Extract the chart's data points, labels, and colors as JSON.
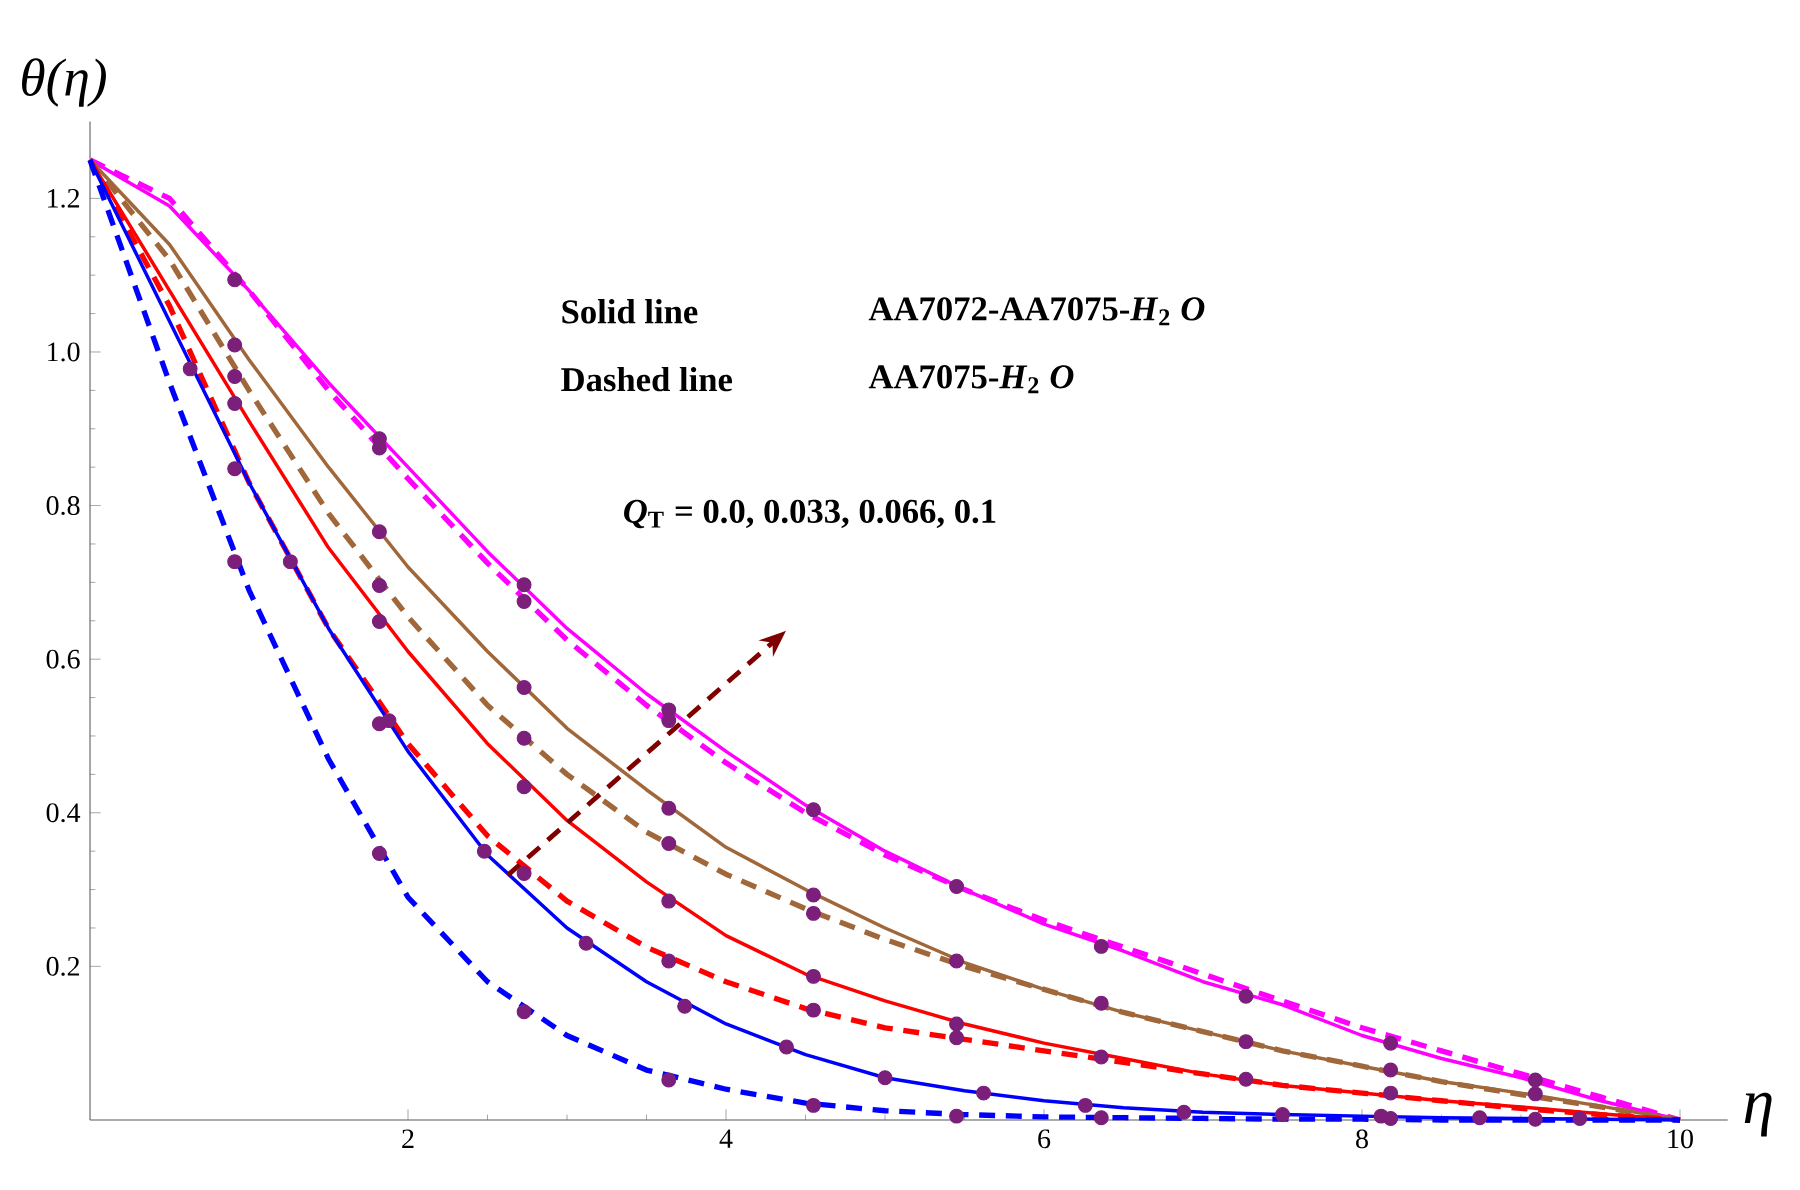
{
  "chart_data": {
    "type": "line",
    "xlabel": "η",
    "ylabel": "θ(η)",
    "annotations": [
      "Solid line",
      "AA7072-AA7075-*H*$_{2}$ *O*",
      "Dashed line",
      "AA7075-*H*$_{2}$ *O*",
      "*Q*$_{T}$ = 0.0, 0.033, 0.066, 0.1"
    ],
    "x": [
      0,
      0.5,
      1,
      1.5,
      2,
      2.5,
      3,
      3.5,
      4,
      4.5,
      5,
      5.5,
      6,
      6.5,
      7,
      7.5,
      8,
      8.5,
      9,
      9.5,
      10
    ],
    "xlim": [
      0,
      10.3
    ],
    "ylim": [
      0,
      1.3
    ],
    "xticks": [
      2,
      4,
      6,
      8,
      10
    ],
    "yticks": [
      0.2,
      0.4,
      0.6,
      0.8,
      {
        "value": 1.0,
        "label": "1.0"
      },
      1.2
    ],
    "grid": false,
    "marker": "none",
    "series": [
      {
        "color": "#ff00ff",
        "line_style": "solid",
        "values": [
          1.25,
          1.19,
          1.08,
          0.96,
          0.85,
          0.74,
          0.64,
          0.555,
          0.48,
          0.41,
          0.35,
          0.3,
          0.255,
          0.22,
          0.18,
          0.15,
          0.11,
          0.08,
          0.055,
          0.025,
          0
        ]
      },
      {
        "color": "#ff00ff",
        "line_style": "dashed",
        "values": [
          1.25,
          1.2,
          1.08,
          0.95,
          0.835,
          0.725,
          0.625,
          0.54,
          0.465,
          0.4,
          0.345,
          0.3,
          0.26,
          0.225,
          0.19,
          0.155,
          0.12,
          0.09,
          0.06,
          0.03,
          0
        ]
      },
      {
        "color": "#a0673a",
        "line_style": "solid",
        "values": [
          1.25,
          1.14,
          0.99,
          0.85,
          0.72,
          0.61,
          0.51,
          0.43,
          0.355,
          0.3,
          0.25,
          0.205,
          0.17,
          0.14,
          0.115,
          0.09,
          0.07,
          0.05,
          0.035,
          0.018,
          0
        ]
      },
      {
        "color": "#a0673a",
        "line_style": "dashed",
        "values": [
          1.25,
          1.12,
          0.95,
          0.79,
          0.655,
          0.54,
          0.45,
          0.375,
          0.32,
          0.275,
          0.235,
          0.2,
          0.17,
          0.14,
          0.115,
          0.09,
          0.07,
          0.05,
          0.033,
          0.017,
          0
        ]
      },
      {
        "color": "#ff0000",
        "line_style": "solid",
        "values": [
          1.25,
          1.08,
          0.91,
          0.745,
          0.61,
          0.49,
          0.39,
          0.31,
          0.24,
          0.19,
          0.155,
          0.125,
          0.1,
          0.08,
          0.06,
          0.045,
          0.035,
          0.025,
          0.017,
          0.008,
          0
        ]
      },
      {
        "color": "#ff0000",
        "line_style": "dashed",
        "values": [
          1.25,
          1.06,
          0.83,
          0.64,
          0.49,
          0.37,
          0.285,
          0.225,
          0.18,
          0.145,
          0.12,
          0.105,
          0.09,
          0.075,
          0.06,
          0.045,
          0.035,
          0.025,
          0.015,
          0.007,
          0
        ]
      },
      {
        "color": "#0000ff",
        "line_style": "solid",
        "values": [
          1.25,
          1.04,
          0.83,
          0.64,
          0.48,
          0.345,
          0.25,
          0.18,
          0.125,
          0.085,
          0.055,
          0.038,
          0.025,
          0.016,
          0.01,
          0.007,
          0.005,
          0.003,
          0.002,
          0.001,
          0
        ]
      },
      {
        "color": "#0000ff",
        "line_style": "dashed",
        "values": [
          1.25,
          0.96,
          0.69,
          0.47,
          0.29,
          0.18,
          0.11,
          0.065,
          0.04,
          0.022,
          0.012,
          0.007,
          0.004,
          0.003,
          0.002,
          0.001,
          0.001,
          0,
          0,
          0,
          0
        ]
      },
      {
        "type": "scatter",
        "marker": "circle",
        "color": "#7b1f7b",
        "x": [
          0.91,
          1.82,
          2.73,
          3.64,
          4.55,
          5.45,
          6.36,
          7.27,
          8.18,
          9.09,
          1.82,
          2.73,
          3.64,
          0.91,
          1.82,
          2.73,
          3.64,
          4.55,
          5.45,
          6.36,
          7.27,
          8.18,
          9.09,
          0.91,
          1.82,
          2.73,
          3.64,
          4.55,
          0.91,
          1.82,
          2.73,
          3.64,
          4.55,
          5.45,
          6.36,
          7.27,
          8.18,
          0.91,
          1.82,
          2.73,
          3.64,
          4.55,
          5.45,
          0.63,
          1.26,
          1.88,
          2.48,
          3.12,
          3.74,
          4.38,
          5.0,
          5.62,
          6.26,
          6.88,
          7.5,
          8.12,
          8.74,
          9.37,
          0.91,
          1.82,
          2.73,
          3.64,
          4.55,
          5.45,
          6.36,
          8.18,
          9.09
        ],
        "values": [
          1.094,
          0.887,
          0.697,
          0.534,
          0.404,
          0.304,
          0.226,
          0.161,
          0.1,
          0.052,
          0.875,
          0.675,
          0.52,
          1.009,
          0.766,
          0.563,
          0.406,
          0.293,
          0.207,
          0.152,
          0.102,
          0.065,
          0.034,
          0.968,
          0.696,
          0.497,
          0.36,
          0.269,
          0.933,
          0.649,
          0.434,
          0.285,
          0.187,
          0.125,
          0.082,
          0.053,
          0.035,
          0.848,
          0.516,
          0.321,
          0.207,
          0.143,
          0.107,
          0.978,
          0.727,
          0.52,
          0.35,
          0.23,
          0.148,
          0.095,
          0.055,
          0.035,
          0.019,
          0.01,
          0.007,
          0.005,
          0.003,
          0.002,
          0.727,
          0.347,
          0.141,
          0.052,
          0.019,
          0.005,
          0.003,
          0.002,
          0.001
        ]
      }
    ]
  }
}
